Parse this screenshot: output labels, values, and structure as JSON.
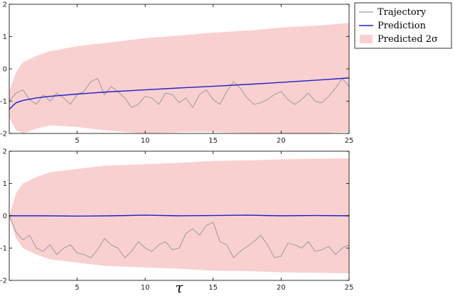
{
  "colors": {
    "trajectory": "#9a9a9a",
    "prediction": "#1f1fc8",
    "band": "#f9d0d0",
    "axis": "#000000"
  },
  "legend": {
    "placement": "top-right, outside plot",
    "items": [
      {
        "label": "Trajectory",
        "symbol": "line",
        "color_key": "trajectory"
      },
      {
        "label": "Prediction",
        "symbol": "line",
        "color_key": "prediction"
      },
      {
        "label": "Predicted 2σ",
        "symbol": "patch",
        "color_key": "band"
      }
    ]
  },
  "xlabel": "τ",
  "chart_data": [
    {
      "type": "line",
      "panel": "top",
      "xlim": [
        0,
        25
      ],
      "ylim": [
        -2,
        2
      ],
      "xticks": [
        5,
        10,
        15,
        20,
        25
      ],
      "yticks": [
        -2,
        -1,
        0,
        1,
        2
      ],
      "tick_labels_x": [
        "5",
        "10",
        "15",
        "20",
        "25"
      ],
      "tick_labels_y": [
        "-2",
        "-1",
        "0",
        "1",
        "2"
      ],
      "grid": false,
      "band": {
        "x": [
          0,
          0.5,
          1,
          2,
          3,
          5,
          7,
          10,
          13,
          15,
          18,
          20,
          23,
          25
        ],
        "upper": [
          -0.7,
          -0.1,
          0.2,
          0.4,
          0.55,
          0.7,
          0.8,
          0.95,
          1.05,
          1.12,
          1.2,
          1.28,
          1.35,
          1.42
        ],
        "lower": [
          -1.5,
          -1.9,
          -2.0,
          -1.85,
          -1.75,
          -1.8,
          -1.9,
          -2.0,
          -1.95,
          -1.95,
          -2.0,
          -2.0,
          -2.0,
          -1.95
        ]
      },
      "series": [
        {
          "name": "Trajectory",
          "x": [
            0,
            0.5,
            1,
            1.5,
            2,
            2.5,
            3,
            3.5,
            4,
            4.5,
            5,
            5.5,
            6,
            6.5,
            7,
            7.5,
            8,
            8.5,
            9,
            9.5,
            10,
            10.5,
            11,
            11.5,
            12,
            12.5,
            13,
            13.5,
            14,
            14.5,
            15,
            15.5,
            16,
            16.5,
            17,
            17.5,
            18,
            18.5,
            19,
            19.5,
            20,
            20.5,
            21,
            21.5,
            22,
            22.5,
            23,
            23.5,
            24,
            24.5,
            25
          ],
          "y": [
            -1.0,
            -0.75,
            -0.65,
            -0.95,
            -1.1,
            -0.8,
            -1.0,
            -0.75,
            -0.9,
            -1.1,
            -0.8,
            -0.7,
            -0.4,
            -0.3,
            -0.8,
            -0.55,
            -0.7,
            -0.9,
            -1.2,
            -1.1,
            -0.85,
            -0.9,
            -1.1,
            -0.75,
            -0.8,
            -1.05,
            -0.9,
            -1.2,
            -0.8,
            -0.65,
            -0.95,
            -1.1,
            -0.7,
            -0.4,
            -0.6,
            -0.9,
            -1.1,
            -1.05,
            -0.95,
            -0.8,
            -0.7,
            -0.95,
            -1.1,
            -0.95,
            -0.75,
            -1.0,
            -1.05,
            -0.85,
            -0.6,
            -0.3,
            -0.55
          ]
        },
        {
          "name": "Prediction",
          "x": [
            0,
            0.5,
            1,
            2,
            3,
            5,
            7,
            10,
            13,
            15,
            18,
            20,
            23,
            25
          ],
          "y": [
            -1.25,
            -1.05,
            -0.98,
            -0.9,
            -0.85,
            -0.78,
            -0.72,
            -0.65,
            -0.58,
            -0.54,
            -0.47,
            -0.42,
            -0.34,
            -0.28
          ]
        }
      ]
    },
    {
      "type": "line",
      "panel": "bottom",
      "xlim": [
        0,
        25
      ],
      "ylim": [
        -2,
        2
      ],
      "xticks": [
        5,
        10,
        15,
        20,
        25
      ],
      "yticks": [
        -2,
        -1,
        0,
        1,
        2
      ],
      "tick_labels_x": [
        "5",
        "10",
        "15",
        "20",
        "25"
      ],
      "tick_labels_y": [
        "-2",
        "-1",
        "0",
        "1",
        "2"
      ],
      "grid": false,
      "band": {
        "x": [
          0,
          0.5,
          1,
          2,
          3,
          5,
          7,
          10,
          13,
          15,
          18,
          20,
          23,
          25
        ],
        "upper": [
          0.0,
          0.7,
          1.0,
          1.2,
          1.35,
          1.45,
          1.55,
          1.6,
          1.65,
          1.7,
          1.72,
          1.75,
          1.77,
          1.78
        ],
        "lower": [
          0.0,
          -0.7,
          -1.0,
          -1.2,
          -1.35,
          -1.45,
          -1.55,
          -1.6,
          -1.65,
          -1.7,
          -1.72,
          -1.75,
          -1.77,
          -1.78
        ]
      },
      "series": [
        {
          "name": "Trajectory",
          "x": [
            0,
            0.5,
            1,
            1.5,
            2,
            2.5,
            3,
            3.5,
            4,
            4.5,
            5,
            5.5,
            6,
            6.5,
            7,
            7.5,
            8,
            8.5,
            9,
            9.5,
            10,
            10.5,
            11,
            11.5,
            12,
            12.5,
            13,
            13.5,
            14,
            14.5,
            15,
            15.5,
            16,
            16.5,
            17,
            17.5,
            18,
            18.5,
            19,
            19.5,
            20,
            20.5,
            21,
            21.5,
            22,
            22.5,
            23,
            23.5,
            24,
            24.5,
            25
          ],
          "y": [
            0.0,
            -0.5,
            -0.75,
            -0.6,
            -1.0,
            -1.1,
            -0.9,
            -1.2,
            -1.0,
            -0.9,
            -1.15,
            -1.2,
            -1.3,
            -1.05,
            -0.7,
            -0.9,
            -1.0,
            -1.3,
            -1.1,
            -0.8,
            -1.0,
            -1.1,
            -0.9,
            -0.8,
            -1.05,
            -1.0,
            -0.55,
            -0.4,
            -0.6,
            -0.3,
            -0.2,
            -0.8,
            -0.9,
            -1.3,
            -1.1,
            -0.95,
            -0.8,
            -0.6,
            -0.9,
            -1.3,
            -1.25,
            -0.85,
            -0.9,
            -1.0,
            -0.8,
            -1.1,
            -1.05,
            -0.95,
            -1.2,
            -1.0,
            -0.9
          ]
        },
        {
          "name": "Prediction",
          "x": [
            0,
            2.5,
            5,
            7.5,
            10,
            12.5,
            15,
            17.5,
            20,
            22.5,
            25
          ],
          "y": [
            0.0,
            0.0,
            -0.01,
            0.0,
            0.02,
            0.0,
            0.01,
            0.02,
            0.0,
            0.01,
            0.0
          ]
        }
      ]
    }
  ]
}
